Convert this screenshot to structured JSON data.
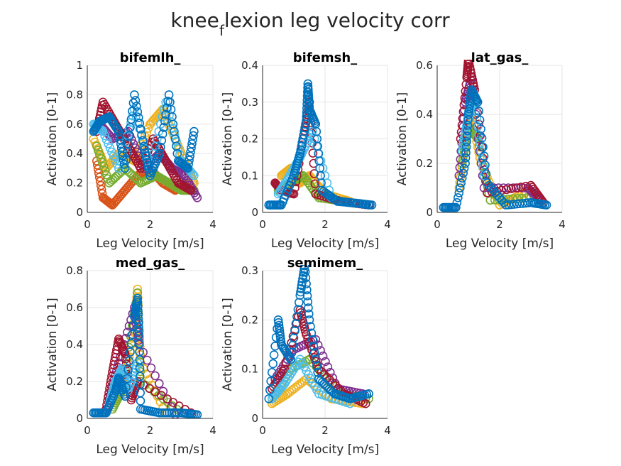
{
  "figure": {
    "title_main": "knee",
    "title_sub": "f",
    "title_rest": "lexion leg velocity corr"
  },
  "colors": [
    "#0072BD",
    "#D95319",
    "#EDB120",
    "#7E2F8E",
    "#77AC30",
    "#4DBEEE",
    "#A2142F"
  ],
  "chart_data": [
    {
      "type": "scatter",
      "title": "bifemlh_",
      "xlabel": "Leg Velocity [m/s]",
      "ylabel": "Activation [0-1]",
      "xlim": [
        0,
        4
      ],
      "ylim": [
        0,
        1
      ],
      "xticks": [
        "0",
        "2",
        "4"
      ],
      "yticks": [
        "0",
        "0.2",
        "0.4",
        "0.6",
        "0.8",
        "1"
      ],
      "grid": true,
      "series": [
        {
          "color": "#D95319",
          "points": [
            [
              0.3,
              0.35
            ],
            [
              0.5,
              0.1
            ],
            [
              0.8,
              0.05
            ],
            [
              1.2,
              0.15
            ],
            [
              1.6,
              0.25
            ],
            [
              2.0,
              0.3
            ],
            [
              2.4,
              0.2
            ],
            [
              2.8,
              0.15
            ],
            [
              3.2,
              0.2
            ]
          ]
        },
        {
          "color": "#EDB120",
          "points": [
            [
              0.2,
              0.5
            ],
            [
              0.6,
              0.3
            ],
            [
              1.0,
              0.4
            ],
            [
              1.5,
              0.35
            ],
            [
              2.0,
              0.6
            ],
            [
              2.4,
              0.7
            ],
            [
              2.8,
              0.5
            ],
            [
              3.2,
              0.3
            ],
            [
              3.4,
              0.2
            ]
          ]
        },
        {
          "color": "#77AC30",
          "points": [
            [
              0.3,
              0.45
            ],
            [
              0.7,
              0.2
            ],
            [
              1.2,
              0.3
            ],
            [
              1.7,
              0.2
            ],
            [
              2.2,
              0.25
            ],
            [
              2.6,
              0.2
            ],
            [
              3.0,
              0.15
            ],
            [
              3.4,
              0.15
            ]
          ]
        },
        {
          "color": "#7E2F8E",
          "points": [
            [
              0.4,
              0.6
            ],
            [
              0.8,
              0.5
            ],
            [
              1.3,
              0.55
            ],
            [
              1.8,
              0.3
            ],
            [
              2.3,
              0.4
            ],
            [
              2.7,
              0.3
            ],
            [
              3.1,
              0.25
            ],
            [
              3.5,
              0.1
            ]
          ]
        },
        {
          "color": "#A2142F",
          "points": [
            [
              0.3,
              0.55
            ],
            [
              0.5,
              0.75
            ],
            [
              0.9,
              0.6
            ],
            [
              1.3,
              0.45
            ],
            [
              1.7,
              0.3
            ],
            [
              2.1,
              0.5
            ],
            [
              2.5,
              0.35
            ],
            [
              2.9,
              0.2
            ],
            [
              3.3,
              0.15
            ]
          ]
        },
        {
          "color": "#4DBEEE",
          "points": [
            [
              0.2,
              0.6
            ],
            [
              0.5,
              0.55
            ],
            [
              1.0,
              0.3
            ],
            [
              1.5,
              0.7
            ],
            [
              2.0,
              0.3
            ],
            [
              2.5,
              0.75
            ],
            [
              3.0,
              0.35
            ],
            [
              3.4,
              0.25
            ]
          ]
        },
        {
          "color": "#0072BD",
          "points": [
            [
              0.2,
              0.55
            ],
            [
              0.4,
              0.62
            ],
            [
              0.7,
              0.65
            ],
            [
              1.0,
              0.55
            ],
            [
              1.2,
              0.3
            ],
            [
              1.5,
              0.8
            ],
            [
              1.8,
              0.45
            ],
            [
              2.0,
              0.25
            ],
            [
              2.3,
              0.4
            ],
            [
              2.6,
              0.8
            ],
            [
              2.9,
              0.35
            ],
            [
              3.2,
              0.3
            ],
            [
              3.4,
              0.55
            ]
          ]
        }
      ]
    },
    {
      "type": "scatter",
      "title": "bifemsh_",
      "xlabel": "Leg Velocity [m/s]",
      "ylabel": "Activation [0-1]",
      "xlim": [
        0,
        4
      ],
      "ylim": [
        0,
        0.4
      ],
      "xticks": [
        "0",
        "2",
        "4"
      ],
      "yticks": [
        "0",
        "0.1",
        "0.2",
        "0.3",
        "0.4"
      ],
      "grid": true,
      "series": [
        {
          "color": "#EDB120",
          "points": [
            [
              0.6,
              0.1
            ],
            [
              0.9,
              0.12
            ],
            [
              1.2,
              0.08
            ],
            [
              1.5,
              0.1
            ],
            [
              2.0,
              0.05
            ],
            [
              2.8,
              0.03
            ]
          ]
        },
        {
          "color": "#77AC30",
          "points": [
            [
              0.5,
              0.06
            ],
            [
              0.9,
              0.08
            ],
            [
              1.3,
              0.1
            ],
            [
              1.8,
              0.04
            ],
            [
              2.6,
              0.03
            ]
          ]
        },
        {
          "color": "#A2142F",
          "points": [
            [
              0.4,
              0.08
            ],
            [
              0.6,
              0.06
            ],
            [
              1.0,
              0.05
            ],
            [
              1.3,
              0.2
            ],
            [
              1.5,
              0.3
            ],
            [
              1.7,
              0.05
            ],
            [
              2.5,
              0.03
            ],
            [
              3.4,
              0.02
            ]
          ]
        },
        {
          "color": "#4DBEEE",
          "points": [
            [
              0.5,
              0.05
            ],
            [
              0.8,
              0.09
            ],
            [
              1.2,
              0.15
            ],
            [
              1.6,
              0.22
            ],
            [
              2.2,
              0.04
            ]
          ]
        },
        {
          "color": "#0072BD",
          "points": [
            [
              0.2,
              0.02
            ],
            [
              0.6,
              0.02
            ],
            [
              1.0,
              0.1
            ],
            [
              1.2,
              0.16
            ],
            [
              1.4,
              0.25
            ],
            [
              1.45,
              0.35
            ],
            [
              1.5,
              0.28
            ],
            [
              1.7,
              0.24
            ],
            [
              1.9,
              0.06
            ],
            [
              2.4,
              0.03
            ],
            [
              3.0,
              0.025
            ],
            [
              3.5,
              0.02
            ]
          ]
        }
      ]
    },
    {
      "type": "scatter",
      "title": "lat_gas_",
      "xlabel": "Leg Velocity [m/s]",
      "ylabel": "Activation [0-1]",
      "xlim": [
        0,
        4
      ],
      "ylim": [
        0,
        0.6
      ],
      "xticks": [
        "0",
        "2",
        "4"
      ],
      "yticks": [
        "0",
        "0.2",
        "0.4",
        "0.6"
      ],
      "grid": true,
      "series": [
        {
          "color": "#EDB120",
          "points": [
            [
              0.7,
              0.1
            ],
            [
              0.9,
              0.3
            ],
            [
              1.1,
              0.4
            ],
            [
              1.4,
              0.2
            ],
            [
              2.0,
              0.03
            ],
            [
              2.8,
              0.08
            ]
          ]
        },
        {
          "color": "#77AC30",
          "points": [
            [
              0.8,
              0.2
            ],
            [
              1.0,
              0.35
            ],
            [
              1.3,
              0.3
            ],
            [
              1.7,
              0.05
            ],
            [
              3.0,
              0.06
            ]
          ]
        },
        {
          "color": "#7E2F8E",
          "points": [
            [
              0.7,
              0.15
            ],
            [
              0.9,
              0.45
            ],
            [
              1.1,
              0.55
            ],
            [
              1.5,
              0.1
            ],
            [
              2.9,
              0.1
            ],
            [
              3.3,
              0.05
            ]
          ]
        },
        {
          "color": "#A2142F",
          "points": [
            [
              0.75,
              0.3
            ],
            [
              0.95,
              0.55
            ],
            [
              1.0,
              0.62
            ],
            [
              1.2,
              0.5
            ],
            [
              1.6,
              0.08
            ],
            [
              3.0,
              0.11
            ],
            [
              3.4,
              0.04
            ]
          ]
        },
        {
          "color": "#4DBEEE",
          "points": [
            [
              0.8,
              0.25
            ],
            [
              1.0,
              0.4
            ],
            [
              1.2,
              0.45
            ],
            [
              1.5,
              0.15
            ]
          ]
        },
        {
          "color": "#0072BD",
          "points": [
            [
              0.2,
              0.02
            ],
            [
              0.6,
              0.02
            ],
            [
              0.9,
              0.2
            ],
            [
              1.0,
              0.4
            ],
            [
              1.1,
              0.5
            ],
            [
              1.3,
              0.45
            ],
            [
              1.6,
              0.12
            ],
            [
              2.2,
              0.03
            ],
            [
              3.0,
              0.04
            ],
            [
              3.5,
              0.03
            ]
          ]
        }
      ]
    },
    {
      "type": "scatter",
      "title": "med_gas_",
      "xlabel": "Leg Velocity [m/s]",
      "ylabel": "Activation [0-1]",
      "xlim": [
        0,
        4
      ],
      "ylim": [
        0,
        0.8
      ],
      "xticks": [
        "0",
        "2",
        "4"
      ],
      "yticks": [
        "0",
        "0.2",
        "0.4",
        "0.6",
        "0.8"
      ],
      "grid": true,
      "series": [
        {
          "color": "#EDB120",
          "points": [
            [
              0.9,
              0.1
            ],
            [
              1.2,
              0.2
            ],
            [
              1.5,
              0.5
            ],
            [
              1.6,
              0.7
            ],
            [
              1.7,
              0.3
            ],
            [
              2.5,
              0.03
            ]
          ]
        },
        {
          "color": "#77AC30",
          "points": [
            [
              0.8,
              0.05
            ],
            [
              1.1,
              0.15
            ],
            [
              1.6,
              0.68
            ],
            [
              1.7,
              0.2
            ],
            [
              3.0,
              0.03
            ]
          ]
        },
        {
          "color": "#7E2F8E",
          "points": [
            [
              0.7,
              0.1
            ],
            [
              1.0,
              0.3
            ],
            [
              1.5,
              0.6
            ],
            [
              1.65,
              0.4
            ],
            [
              2.8,
              0.02
            ]
          ]
        },
        {
          "color": "#A2142F",
          "points": [
            [
              0.6,
              0.05
            ],
            [
              0.8,
              0.25
            ],
            [
              1.0,
              0.43
            ],
            [
              1.2,
              0.35
            ],
            [
              1.4,
              0.1
            ],
            [
              1.6,
              0.2
            ],
            [
              3.3,
              0.03
            ]
          ]
        },
        {
          "color": "#4DBEEE",
          "points": [
            [
              0.7,
              0.08
            ],
            [
              0.9,
              0.2
            ],
            [
              1.1,
              0.27
            ],
            [
              1.3,
              0.15
            ],
            [
              1.6,
              0.3
            ]
          ]
        },
        {
          "color": "#0072BD",
          "points": [
            [
              0.2,
              0.03
            ],
            [
              0.6,
              0.03
            ],
            [
              0.9,
              0.15
            ],
            [
              1.0,
              0.22
            ],
            [
              1.2,
              0.12
            ],
            [
              1.5,
              0.55
            ],
            [
              1.6,
              0.65
            ],
            [
              1.65,
              0.45
            ],
            [
              1.7,
              0.05
            ],
            [
              2.3,
              0.03
            ],
            [
              3.0,
              0.03
            ],
            [
              3.5,
              0.02
            ]
          ]
        }
      ]
    },
    {
      "type": "scatter",
      "title": "semimem_",
      "xlabel": "Leg Velocity [m/s]",
      "ylabel": "Activation [0-1]",
      "xlim": [
        0,
        4
      ],
      "ylim": [
        0,
        0.3
      ],
      "xticks": [
        "0",
        "2",
        "4"
      ],
      "yticks": [
        "0",
        "0.1",
        "0.2",
        "0.3"
      ],
      "grid": true,
      "series": [
        {
          "color": "#EDB120",
          "points": [
            [
              0.3,
              0.03
            ],
            [
              0.8,
              0.05
            ],
            [
              1.4,
              0.08
            ],
            [
              2.2,
              0.04
            ],
            [
              3.2,
              0.03
            ]
          ]
        },
        {
          "color": "#77AC30",
          "points": [
            [
              0.4,
              0.05
            ],
            [
              0.9,
              0.1
            ],
            [
              1.5,
              0.12
            ],
            [
              2.5,
              0.05
            ],
            [
              3.4,
              0.04
            ]
          ]
        },
        {
          "color": "#7E2F8E",
          "points": [
            [
              0.4,
              0.08
            ],
            [
              1.0,
              0.14
            ],
            [
              1.7,
              0.16
            ],
            [
              2.4,
              0.06
            ],
            [
              3.2,
              0.05
            ]
          ]
        },
        {
          "color": "#A2142F",
          "points": [
            [
              0.3,
              0.06
            ],
            [
              0.7,
              0.1
            ],
            [
              1.2,
              0.22
            ],
            [
              1.4,
              0.17
            ],
            [
              1.8,
              0.1
            ],
            [
              2.6,
              0.05
            ],
            [
              3.3,
              0.03
            ]
          ]
        },
        {
          "color": "#4DBEEE",
          "points": [
            [
              0.3,
              0.04
            ],
            [
              0.7,
              0.07
            ],
            [
              1.2,
              0.12
            ],
            [
              1.8,
              0.05
            ],
            [
              2.8,
              0.03
            ]
          ]
        },
        {
          "color": "#0072BD",
          "points": [
            [
              0.2,
              0.04
            ],
            [
              0.5,
              0.2
            ],
            [
              0.6,
              0.15
            ],
            [
              0.9,
              0.12
            ],
            [
              1.2,
              0.25
            ],
            [
              1.35,
              0.31
            ],
            [
              1.5,
              0.2
            ],
            [
              1.8,
              0.08
            ],
            [
              2.3,
              0.05
            ],
            [
              2.8,
              0.04
            ],
            [
              3.4,
              0.05
            ]
          ]
        }
      ]
    }
  ]
}
